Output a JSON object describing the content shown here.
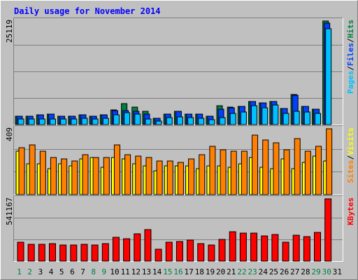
{
  "colors": {
    "background": "#c0c0c0",
    "title": "#0000ff",
    "hits": "#008040",
    "files": "#0040ff",
    "pages": "#00c0ff",
    "visits": "#ffff00",
    "sites": "#ff8000",
    "kbytes": "#ff0000",
    "weekend_day": "#008040",
    "weekday_day": "#000000"
  },
  "chart_data": [
    {
      "type": "bar",
      "title": "Daily usage for November 2014",
      "ylabel_parts": [
        "Pages",
        "/",
        "Files",
        "/",
        "Hits"
      ],
      "max_label": "25119",
      "ylim": [
        0,
        25119
      ],
      "grid": true,
      "series": [
        {
          "name": "Hits",
          "values": [
            2100,
            2100,
            2300,
            2600,
            2100,
            2100,
            2400,
            2100,
            2400,
            3600,
            5100,
            4300,
            3300,
            1600,
            2500,
            3300,
            2600,
            2600,
            2000,
            4600,
            4300,
            4400,
            5600,
            5200,
            5600,
            3900,
            7300,
            4400,
            3800,
            25119
          ]
        },
        {
          "name": "Files",
          "values": [
            2100,
            2100,
            2300,
            2600,
            2100,
            2100,
            2400,
            2100,
            2400,
            3400,
            3400,
            3300,
            2500,
            1600,
            2500,
            3300,
            2600,
            2600,
            2000,
            3800,
            4100,
            4400,
            5600,
            5200,
            5600,
            3900,
            7100,
            4400,
            3800,
            24600
          ]
        },
        {
          "name": "Pages",
          "values": [
            1300,
            1300,
            1400,
            1400,
            1300,
            1300,
            1500,
            1300,
            1500,
            2300,
            2900,
            2500,
            1400,
            900,
            1700,
            1900,
            1700,
            1600,
            1200,
            1700,
            2700,
            3000,
            4600,
            4100,
            4700,
            2800,
            3300,
            3100,
            2800,
            23300
          ]
        }
      ]
    },
    {
      "type": "bar",
      "ylabel_parts": [
        "Sites",
        "/",
        "Visits"
      ],
      "max_label": "409",
      "ylim": [
        0,
        409
      ],
      "grid": true,
      "series": [
        {
          "name": "Visits",
          "values": [
            270,
            190,
            190,
            160,
            190,
            180,
            220,
            230,
            170,
            230,
            220,
            190,
            180,
            150,
            180,
            180,
            180,
            160,
            180,
            180,
            170,
            190,
            230,
            170,
            160,
            220,
            160,
            200,
            240,
            210
          ]
        },
        {
          "name": "Sites",
          "values": [
            290,
            310,
            270,
            230,
            220,
            210,
            250,
            230,
            230,
            310,
            250,
            240,
            230,
            210,
            210,
            200,
            220,
            250,
            300,
            280,
            270,
            270,
            370,
            340,
            320,
            280,
            350,
            270,
            300,
            409
          ]
        }
      ]
    },
    {
      "type": "bar",
      "ylabel_parts": [
        "KBytes"
      ],
      "max_label": "541167",
      "ylim": [
        0,
        541167
      ],
      "grid": true,
      "series": [
        {
          "name": "KBytes",
          "values": [
            165000,
            147000,
            145000,
            152000,
            137000,
            142000,
            147000,
            142000,
            152000,
            208000,
            196000,
            237000,
            275000,
            102000,
            165000,
            172000,
            180000,
            152000,
            137000,
            190000,
            255000,
            243000,
            242000,
            220000,
            230000,
            166000,
            224000,
            210000,
            249000,
            541167
          ]
        }
      ]
    }
  ],
  "days": [
    {
      "label": "1",
      "weekend": true
    },
    {
      "label": "2",
      "weekend": true
    },
    {
      "label": "3",
      "weekend": false
    },
    {
      "label": "4",
      "weekend": false
    },
    {
      "label": "5",
      "weekend": false
    },
    {
      "label": "6",
      "weekend": false
    },
    {
      "label": "7",
      "weekend": false
    },
    {
      "label": "8",
      "weekend": true
    },
    {
      "label": "9",
      "weekend": true
    },
    {
      "label": "10",
      "weekend": false
    },
    {
      "label": "11",
      "weekend": false
    },
    {
      "label": "12",
      "weekend": false
    },
    {
      "label": "13",
      "weekend": false
    },
    {
      "label": "14",
      "weekend": false
    },
    {
      "label": "15",
      "weekend": true
    },
    {
      "label": "16",
      "weekend": true
    },
    {
      "label": "17",
      "weekend": false
    },
    {
      "label": "18",
      "weekend": false
    },
    {
      "label": "19",
      "weekend": false
    },
    {
      "label": "20",
      "weekend": false
    },
    {
      "label": "21",
      "weekend": false
    },
    {
      "label": "22",
      "weekend": true
    },
    {
      "label": "23",
      "weekend": true
    },
    {
      "label": "24",
      "weekend": false
    },
    {
      "label": "25",
      "weekend": false
    },
    {
      "label": "26",
      "weekend": false
    },
    {
      "label": "27",
      "weekend": false
    },
    {
      "label": "28",
      "weekend": false
    },
    {
      "label": "29",
      "weekend": true
    },
    {
      "label": "30",
      "weekend": true
    },
    {
      "label": "31",
      "weekend": false
    }
  ]
}
